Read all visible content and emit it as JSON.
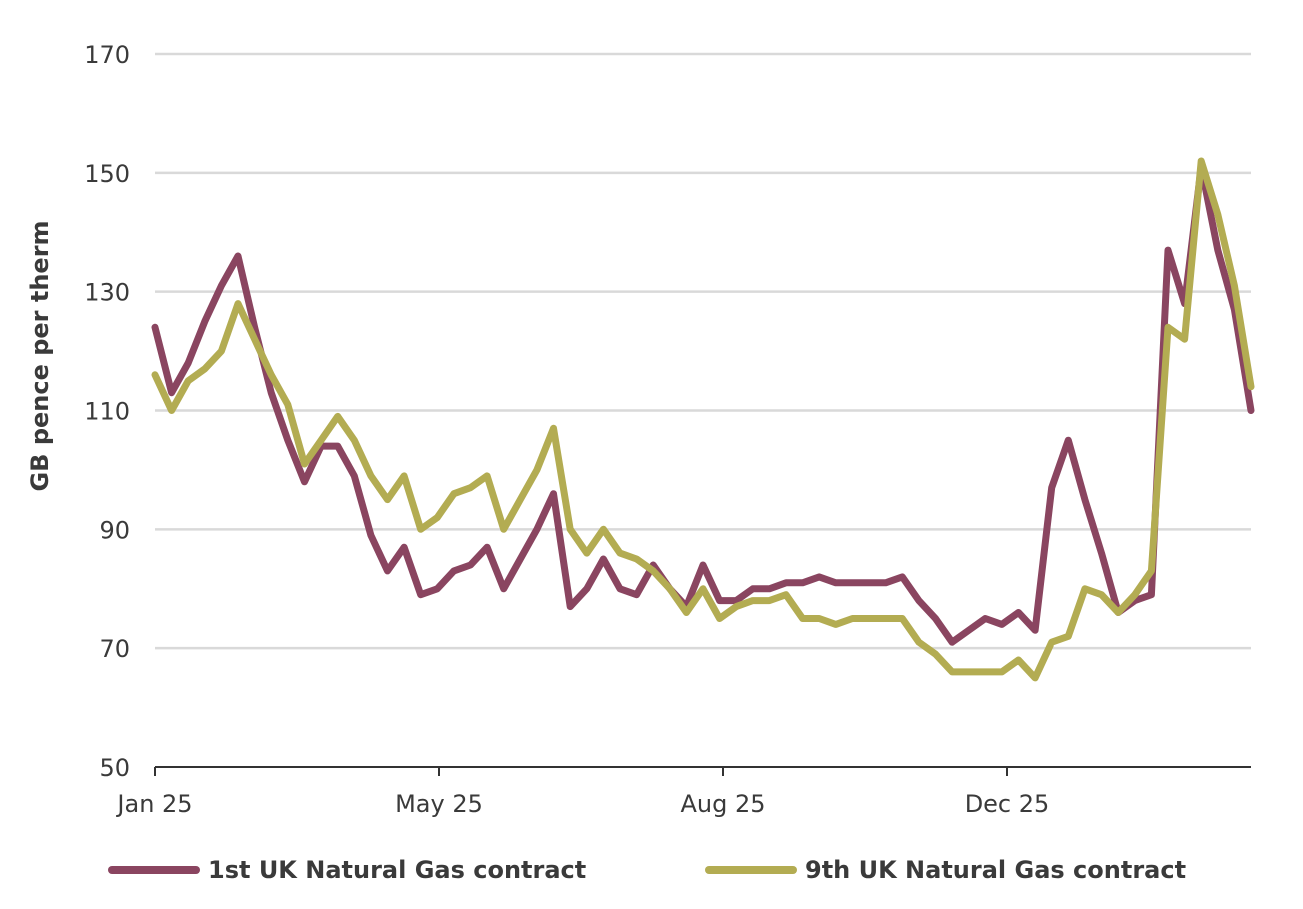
{
  "chart_data": {
    "type": "line",
    "title": "",
    "xlabel": "",
    "ylabel": "GB pence per therm",
    "ylim": [
      50,
      170
    ],
    "yticks": [
      50,
      70,
      90,
      110,
      130,
      150,
      170
    ],
    "xtick_labels": [
      "Jan 25",
      "May 25",
      "Aug 25",
      "Dec 25"
    ],
    "grid": "horizontal",
    "legend_position": "bottom",
    "colors": {
      "series_1": "#8a4560",
      "series_2": "#b3ac52",
      "grid": "#d9d9d9",
      "axis": "#333333"
    },
    "x": [
      "2025-01-01",
      "2025-01-08",
      "2025-01-15",
      "2025-01-22",
      "2025-01-29",
      "2025-02-05",
      "2025-02-12",
      "2025-02-19",
      "2025-02-26",
      "2025-03-05",
      "2025-03-12",
      "2025-03-19",
      "2025-03-26",
      "2025-04-02",
      "2025-04-09",
      "2025-04-16",
      "2025-04-23",
      "2025-04-30",
      "2025-05-07",
      "2025-05-14",
      "2025-05-21",
      "2025-05-28",
      "2025-06-04",
      "2025-06-11",
      "2025-06-18",
      "2025-06-25",
      "2025-07-02",
      "2025-07-09",
      "2025-07-16",
      "2025-07-23",
      "2025-07-30",
      "2025-08-06",
      "2025-08-13",
      "2025-08-20",
      "2025-08-27",
      "2025-09-03",
      "2025-09-10",
      "2025-09-17",
      "2025-09-24",
      "2025-10-01",
      "2025-10-08",
      "2025-10-15",
      "2025-10-22",
      "2025-10-29",
      "2025-11-05",
      "2025-11-12",
      "2025-11-19",
      "2025-11-26",
      "2025-12-03",
      "2025-12-10",
      "2025-12-17",
      "2025-12-24",
      "2025-12-31",
      "2026-01-07",
      "2026-01-14",
      "2026-01-21",
      "2026-01-28",
      "2026-02-04",
      "2026-02-11",
      "2026-02-18",
      "2026-02-25",
      "2026-03-04",
      "2026-03-11",
      "2026-03-18",
      "2026-03-25",
      "2026-04-01",
      "2026-04-08"
    ],
    "series": [
      {
        "name": "1st UK Natural Gas contract",
        "values": [
          124,
          113,
          118,
          125,
          131,
          136,
          124,
          113,
          105,
          98,
          104,
          104,
          99,
          89,
          83,
          87,
          79,
          80,
          83,
          84,
          87,
          80,
          85,
          90,
          96,
          77,
          80,
          85,
          80,
          79,
          84,
          80,
          77,
          84,
          78,
          78,
          80,
          80,
          81,
          81,
          82,
          81,
          81,
          81,
          81,
          82,
          78,
          75,
          71,
          73,
          75,
          74,
          76,
          73,
          97,
          105,
          95,
          86,
          76,
          78,
          79,
          137,
          128,
          151,
          137,
          127,
          110
        ]
      },
      {
        "name": "9th UK Natural Gas contract",
        "values": [
          116,
          110,
          115,
          117,
          120,
          128,
          122,
          116,
          111,
          101,
          105,
          109,
          105,
          99,
          95,
          99,
          90,
          92,
          96,
          97,
          99,
          90,
          95,
          100,
          107,
          90,
          86,
          90,
          86,
          85,
          83,
          80,
          76,
          80,
          75,
          77,
          78,
          78,
          79,
          75,
          75,
          74,
          75,
          75,
          75,
          75,
          71,
          69,
          66,
          66,
          66,
          66,
          68,
          65,
          71,
          72,
          80,
          79,
          76,
          79,
          83,
          124,
          122,
          152,
          143,
          131,
          114
        ]
      }
    ]
  }
}
